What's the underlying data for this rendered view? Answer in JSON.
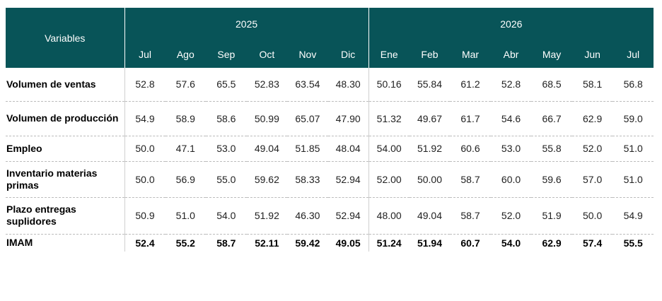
{
  "table": {
    "header": {
      "variables_label": "Variables",
      "years": [
        {
          "label": "2025",
          "span": 6
        },
        {
          "label": "2026",
          "span": 7
        }
      ],
      "months": [
        "Jul",
        "Ago",
        "Sep",
        "Oct",
        "Nov",
        "Dic",
        "Ene",
        "Feb",
        "Mar",
        "Abr",
        "May",
        "Jun",
        "Jul"
      ]
    },
    "rows": [
      {
        "label": "Volumen de ventas",
        "values": [
          "52.8",
          "57.6",
          "65.5",
          "52.83",
          "63.54",
          "48.30",
          "50.16",
          "55.84",
          "61.2",
          "52.8",
          "68.5",
          "58.1",
          "56.8"
        ]
      },
      {
        "label": "Volumen de producción",
        "values": [
          "54.9",
          "58.9",
          "58.6",
          "50.99",
          "65.07",
          "47.90",
          "51.32",
          "49.67",
          "61.7",
          "54.6",
          "66.7",
          "62.9",
          "59.0"
        ]
      },
      {
        "label": "Empleo",
        "values": [
          "50.0",
          "47.1",
          "53.0",
          "49.04",
          "51.85",
          "48.04",
          "54.00",
          "51.92",
          "60.6",
          "53.0",
          "55.8",
          "52.0",
          "51.0"
        ]
      },
      {
        "label": "Inventario materias primas",
        "values": [
          "50.0",
          "56.9",
          "55.0",
          "59.62",
          "58.33",
          "52.94",
          "52.00",
          "50.00",
          "58.7",
          "60.0",
          "59.6",
          "57.0",
          "51.0"
        ]
      },
      {
        "label": "Plazo entregas suplidores",
        "values": [
          "50.9",
          "51.0",
          "54.0",
          "51.92",
          "46.30",
          "52.94",
          "48.00",
          "49.04",
          "58.7",
          "52.0",
          "51.9",
          "50.0",
          "54.9"
        ]
      },
      {
        "label": "IMAM",
        "values": [
          "52.4",
          "55.2",
          "58.7",
          "52.11",
          "59.42",
          "49.05",
          "51.24",
          "51.94",
          "60.7",
          "54.0",
          "62.9",
          "57.4",
          "55.5"
        ]
      }
    ],
    "colors": {
      "header_bg": "#085458",
      "header_text": "#ffffff"
    }
  }
}
